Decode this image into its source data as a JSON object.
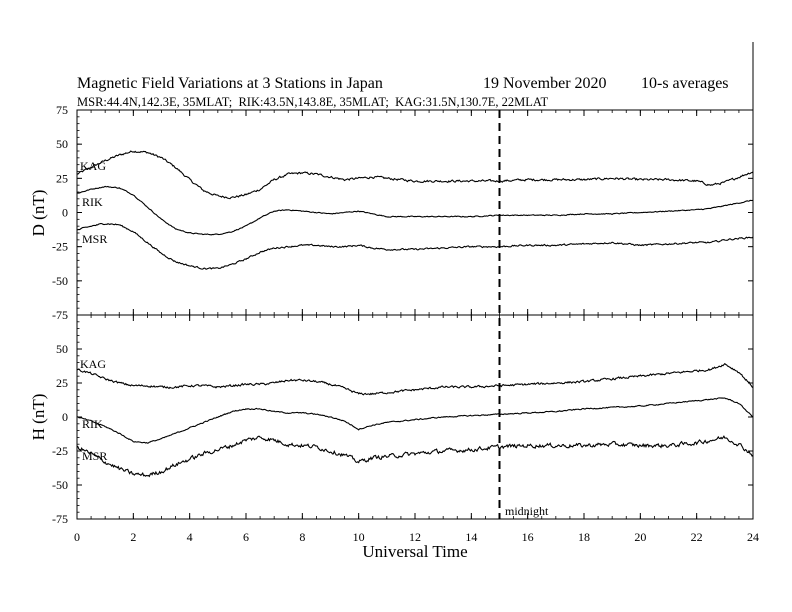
{
  "chart_data": {
    "type": "line",
    "title": "Magnetic Field Variations at 3 Stations in Japan",
    "date": "19 November 2020",
    "averaging": "10-s averages",
    "subtitle": "MSR:44.4N,142.3E, 35MLAT;  RIK:43.5N,143.8E, 35MLAT;  KAG:31.5N,130.7E, 22MLAT",
    "xlabel": "Universal Time",
    "xlim": [
      0,
      24
    ],
    "xticks": [
      0,
      2,
      4,
      6,
      8,
      10,
      12,
      14,
      16,
      18,
      20,
      22,
      24
    ],
    "marker": {
      "x": 15,
      "label": "midnight"
    },
    "panels": [
      {
        "ylabel": "D (nT)",
        "ylim": [
          -75,
          75
        ],
        "yticks": [
          -75,
          -50,
          -25,
          0,
          25,
          50,
          75
        ],
        "series": [
          {
            "name": "KAG",
            "x": [
              0,
              0.5,
              1,
              1.5,
              2,
              2.5,
              3,
              3.5,
              4,
              4.5,
              5,
              5.5,
              6,
              6.5,
              7,
              7.5,
              8,
              8.5,
              9,
              9.5,
              10,
              10.5,
              11,
              11.5,
              12,
              13,
              14,
              15,
              16,
              17,
              18,
              19,
              20,
              21,
              22,
              22.5,
              23,
              23.5,
              24
            ],
            "y": [
              28,
              33,
              38,
              42,
              45,
              44,
              40,
              33,
              24,
              16,
              12,
              11,
              13,
              17,
              24,
              28,
              29,
              28,
              26,
              24,
              25,
              26,
              25,
              24,
              23,
              23,
              23,
              23,
              24,
              24,
              24,
              25,
              24,
              24,
              23,
              20,
              22,
              26,
              30
            ]
          },
          {
            "name": "RIK",
            "x": [
              0,
              0.5,
              1,
              1.5,
              2,
              2.5,
              3,
              3.5,
              4,
              4.5,
              5,
              5.5,
              6,
              6.5,
              7,
              7.5,
              8,
              8.5,
              9,
              9.5,
              10,
              10.5,
              11,
              11.5,
              12,
              13,
              14,
              15,
              16,
              17,
              18,
              19,
              20,
              21,
              22,
              22.5,
              23,
              23.5,
              24
            ],
            "y": [
              14,
              17,
              19,
              18,
              13,
              4,
              -5,
              -12,
              -15,
              -16,
              -16,
              -14,
              -10,
              -4,
              1,
              2,
              1,
              0,
              -1,
              0,
              1,
              -1,
              -3,
              -3,
              -3,
              -3,
              -3,
              -2,
              -2,
              -2,
              -1,
              -1,
              0,
              1,
              2,
              3,
              5,
              7,
              9
            ]
          },
          {
            "name": "MSR",
            "x": [
              0,
              0.5,
              1,
              1.5,
              2,
              2.5,
              3,
              3.5,
              4,
              4.5,
              5,
              5.5,
              6,
              6.5,
              7,
              7.5,
              8,
              8.5,
              9,
              9.5,
              10,
              10.5,
              11,
              11.5,
              12,
              13,
              14,
              15,
              16,
              17,
              18,
              19,
              20,
              21,
              22,
              22.5,
              23,
              23.5,
              24
            ],
            "y": [
              -13,
              -10,
              -8,
              -9,
              -14,
              -22,
              -30,
              -36,
              -39,
              -41,
              -41,
              -38,
              -34,
              -29,
              -26,
              -25,
              -24,
              -24,
              -25,
              -25,
              -24,
              -26,
              -27,
              -27,
              -27,
              -26,
              -25,
              -25,
              -24,
              -24,
              -23,
              -22,
              -24,
              -23,
              -22,
              -22,
              -20,
              -19,
              -18
            ]
          }
        ]
      },
      {
        "ylabel": "H (nT)",
        "ylim": [
          -75,
          75
        ],
        "yticks": [
          -75,
          -50,
          -25,
          0,
          25,
          50,
          75
        ],
        "series": [
          {
            "name": "KAG",
            "x": [
              0,
              0.5,
              1,
              1.5,
              2,
              2.5,
              3,
              3.5,
              4,
              4.5,
              5,
              5.5,
              6,
              6.5,
              7,
              7.5,
              8,
              8.5,
              9,
              9.5,
              10,
              10.5,
              11,
              11.5,
              12,
              13,
              14,
              15,
              16,
              17,
              18,
              19,
              20,
              21,
              22,
              22.5,
              23,
              23.5,
              24
            ],
            "y": [
              35,
              32,
              28,
              25,
              23,
              23,
              22,
              22,
              23,
              23,
              22,
              23,
              24,
              24,
              25,
              27,
              27,
              26,
              24,
              21,
              17,
              17,
              18,
              19,
              20,
              22,
              22,
              23,
              24,
              25,
              26,
              28,
              30,
              32,
              34,
              35,
              39,
              33,
              22
            ]
          },
          {
            "name": "RIK",
            "x": [
              0,
              0.5,
              1,
              1.5,
              2,
              2.5,
              3,
              3.5,
              4,
              4.5,
              5,
              5.5,
              6,
              6.5,
              7,
              7.5,
              8,
              8.5,
              9,
              9.5,
              10,
              10.5,
              11,
              11.5,
              12,
              13,
              14,
              15,
              16,
              17,
              18,
              19,
              20,
              21,
              22,
              22.5,
              23,
              23.5,
              24
            ],
            "y": [
              0,
              -3,
              -7,
              -12,
              -18,
              -19,
              -16,
              -12,
              -8,
              -4,
              0,
              4,
              6,
              6,
              4,
              3,
              3,
              2,
              0,
              -3,
              -9,
              -6,
              -4,
              -3,
              -2,
              0,
              1,
              2,
              3,
              4,
              6,
              7,
              8,
              10,
              12,
              13,
              14,
              10,
              0
            ]
          },
          {
            "name": "MSR",
            "x": [
              0,
              0.5,
              1,
              1.5,
              2,
              2.5,
              3,
              3.5,
              4,
              4.5,
              5,
              5.5,
              6,
              6.5,
              7,
              7.5,
              8,
              8.5,
              9,
              9.5,
              10,
              10.5,
              11,
              11.5,
              12,
              13,
              14,
              15,
              16,
              17,
              18,
              19,
              20,
              21,
              22,
              22.5,
              23,
              23.5,
              24
            ],
            "y": [
              -22,
              -27,
              -33,
              -38,
              -42,
              -43,
              -40,
              -35,
              -31,
              -27,
              -24,
              -21,
              -17,
              -15,
              -17,
              -20,
              -21,
              -22,
              -25,
              -28,
              -33,
              -30,
              -29,
              -28,
              -27,
              -25,
              -24,
              -22,
              -21,
              -21,
              -21,
              -20,
              -21,
              -21,
              -19,
              -17,
              -15,
              -20,
              -28
            ]
          }
        ]
      }
    ]
  }
}
